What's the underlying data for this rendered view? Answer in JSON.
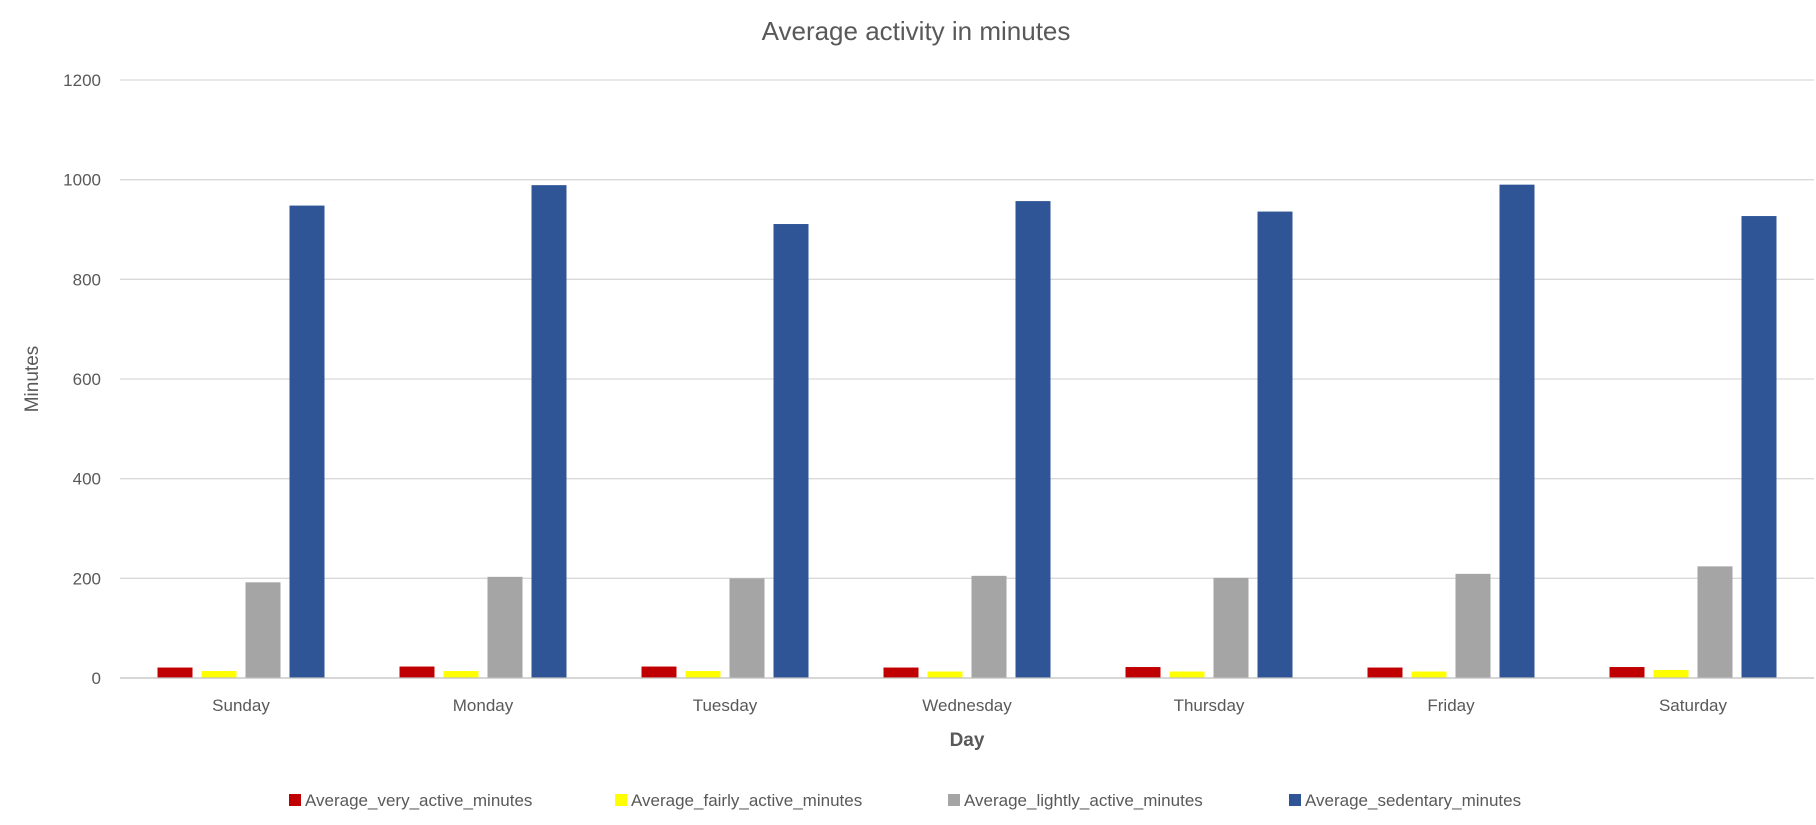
{
  "chart_data": {
    "type": "bar",
    "title": "Average activity in minutes",
    "xlabel": "Day",
    "ylabel": "Minutes",
    "ylim": [
      0,
      1200
    ],
    "yticks": [
      0,
      200,
      400,
      600,
      800,
      1000,
      1200
    ],
    "grid": true,
    "legend_position": "bottom",
    "categories": [
      "Sunday",
      "Monday",
      "Tuesday",
      "Wednesday",
      "Thursday",
      "Friday",
      "Saturday"
    ],
    "series": [
      {
        "name": "Average_very_active_minutes",
        "color": "#c00000",
        "values": [
          21,
          23,
          23,
          21,
          22,
          21,
          22
        ]
      },
      {
        "name": "Average_fairly_active_minutes",
        "color": "#ffff00",
        "values": [
          14,
          14,
          14,
          13,
          13,
          13,
          16
        ]
      },
      {
        "name": "Average_lightly_active_minutes",
        "color": "#a5a5a5",
        "values": [
          192,
          203,
          200,
          205,
          201,
          209,
          224
        ]
      },
      {
        "name": "Average_sedentary_minutes",
        "color": "#2f5597",
        "values": [
          948,
          989,
          911,
          957,
          936,
          990,
          927
        ]
      }
    ]
  }
}
